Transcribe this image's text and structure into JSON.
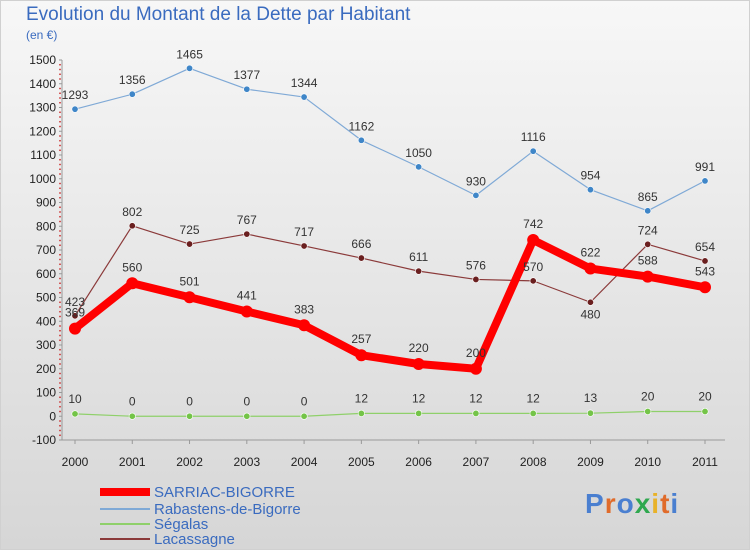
{
  "title": "Evolution du Montant de la Dette par Habitant",
  "subtitle": "(en €)",
  "logo_text": "Proxiti",
  "chart_data": {
    "type": "line",
    "title": "Evolution du Montant de la Dette par Habitant",
    "ylabel": "(en €)",
    "xlabel": "",
    "x": [
      "2000",
      "2001",
      "2002",
      "2003",
      "2004",
      "2005",
      "2006",
      "2007",
      "2008",
      "2009",
      "2010",
      "2011"
    ],
    "ylim": [
      -100,
      1500
    ],
    "yticks": [
      -100,
      0,
      100,
      200,
      300,
      400,
      500,
      600,
      700,
      800,
      900,
      1000,
      1100,
      1200,
      1300,
      1400,
      1500
    ],
    "grid": false,
    "legend_position": "bottom-left",
    "series": [
      {
        "name": "SARRIAC-BIGORRE",
        "color": "#ff0000",
        "values": [
          369,
          560,
          501,
          441,
          383,
          257,
          220,
          200,
          742,
          622,
          588,
          543
        ]
      },
      {
        "name": "Rabastens-de-Bigorre",
        "color": "#7fa9d6",
        "values": [
          1293,
          1356,
          1465,
          1377,
          1344,
          1162,
          1050,
          930,
          1116,
          954,
          865,
          991
        ]
      },
      {
        "name": "Ségalas",
        "color": "#8fd06a",
        "values": [
          10,
          0,
          0,
          0,
          0,
          12,
          12,
          12,
          12,
          13,
          20,
          20
        ]
      },
      {
        "name": "Lacassagne",
        "color": "#8b3a3a",
        "values": [
          423,
          802,
          725,
          767,
          717,
          666,
          611,
          576,
          570,
          480,
          724,
          654
        ]
      }
    ]
  }
}
